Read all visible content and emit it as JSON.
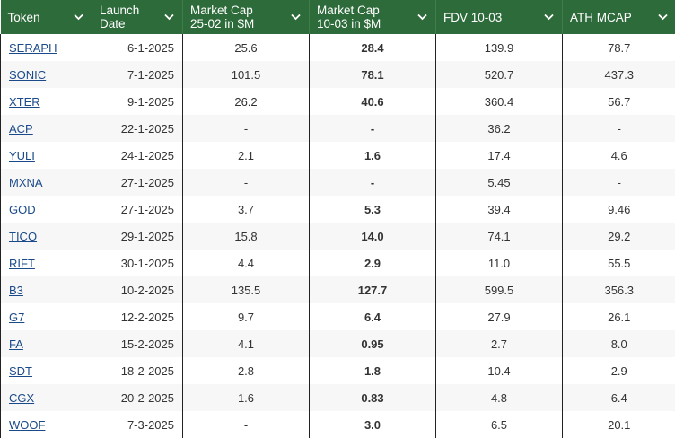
{
  "columns": [
    {
      "line1": "Token",
      "line2": ""
    },
    {
      "line1": "Launch",
      "line2": "Date"
    },
    {
      "line1": "Market Cap",
      "line2": "25-02 in $M"
    },
    {
      "line1": "Market Cap",
      "line2": "10-03 in $M"
    },
    {
      "line1": "FDV 10-03",
      "line2": ""
    },
    {
      "line1": "ATH MCAP",
      "line2": ""
    }
  ],
  "rows": [
    {
      "token": "SERAPH",
      "date": "6-1-2025",
      "mc2502": "25.6",
      "mc1003": "28.4",
      "fdv": "139.9",
      "ath": "78.7"
    },
    {
      "token": "SONIC",
      "date": "7-1-2025",
      "mc2502": "101.5",
      "mc1003": "78.1",
      "fdv": "520.7",
      "ath": "437.3"
    },
    {
      "token": "XTER",
      "date": "9-1-2025",
      "mc2502": "26.2",
      "mc1003": "40.6",
      "fdv": "360.4",
      "ath": "56.7"
    },
    {
      "token": "ACP",
      "date": "22-1-2025",
      "mc2502": "-",
      "mc1003": "-",
      "fdv": "36.2",
      "ath": "-"
    },
    {
      "token": "YULI",
      "date": "24-1-2025",
      "mc2502": "2.1",
      "mc1003": "1.6",
      "fdv": "17.4",
      "ath": "4.6"
    },
    {
      "token": "MXNA",
      "date": "27-1-2025",
      "mc2502": "-",
      "mc1003": "-",
      "fdv": "5.45",
      "ath": "-"
    },
    {
      "token": "GOD",
      "date": "27-1-2025",
      "mc2502": "3.7",
      "mc1003": "5.3",
      "fdv": "39.4",
      "ath": "9.46"
    },
    {
      "token": "TICO",
      "date": "29-1-2025",
      "mc2502": "15.8",
      "mc1003": "14.0",
      "fdv": "74.1",
      "ath": "29.2"
    },
    {
      "token": "RIFT",
      "date": "30-1-2025",
      "mc2502": "4.4",
      "mc1003": "2.9",
      "fdv": "11.0",
      "ath": "55.5"
    },
    {
      "token": "B3",
      "date": "10-2-2025",
      "mc2502": "135.5",
      "mc1003": "127.7",
      "fdv": "599.5",
      "ath": "356.3"
    },
    {
      "token": "G7",
      "date": "12-2-2025",
      "mc2502": "9.7",
      "mc1003": "6.4",
      "fdv": "27.9",
      "ath": "26.1"
    },
    {
      "token": "FA",
      "date": "15-2-2025",
      "mc2502": "4.1",
      "mc1003": "0.95",
      "fdv": "2.7",
      "ath": "8.0"
    },
    {
      "token": "SDT",
      "date": "18-2-2025",
      "mc2502": "2.8",
      "mc1003": "1.8",
      "fdv": "10.4",
      "ath": "2.9"
    },
    {
      "token": "CGX",
      "date": "20-2-2025",
      "mc2502": "1.6",
      "mc1003": "0.83",
      "fdv": "4.8",
      "ath": "6.4"
    },
    {
      "token": "WOOF",
      "date": "7-3-2025",
      "mc2502": "-",
      "mc1003": "3.0",
      "fdv": "6.5",
      "ath": "20.1"
    }
  ],
  "colors": {
    "header_bg": "#2e6b3a",
    "header_text": "#ffffff",
    "link": "#1a4a8a"
  },
  "icons": {
    "sort": "chevron-down-icon"
  }
}
